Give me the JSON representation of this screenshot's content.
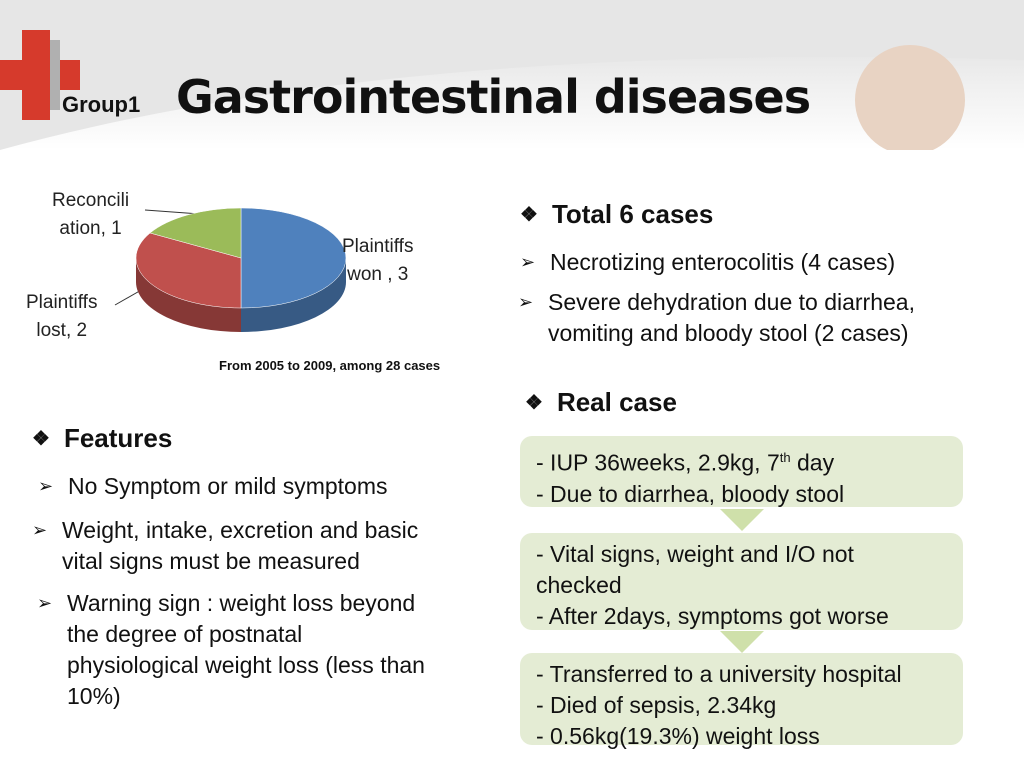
{
  "header": {
    "group": "Group1",
    "title": "Gastrointestinal diseases"
  },
  "chart_data": {
    "type": "pie",
    "values": [
      3,
      2,
      1
    ],
    "value_labels": [
      "Plaintiffs\nwon , 3",
      "Plaintiffs\nlost, 2",
      "Reconcili\nation, 1"
    ],
    "colors": [
      "#4f81bd",
      "#c0504d",
      "#9bbb59"
    ],
    "note": "From 2005 to 2009, among 28 cases"
  },
  "summary": {
    "heading": "Total 6 cases",
    "items": [
      "Necrotizing enterocolitis (4 cases)",
      "Severe dehydration due to diarrhea,\nvomiting and bloody stool (2 cases)"
    ]
  },
  "features": {
    "heading": "Features",
    "items": [
      "No Symptom or mild symptoms",
      "Weight, intake, excretion and basic\nvital signs must be measured",
      "Warning sign : weight loss beyond\nthe degree of postnatal\nphysiological weight loss (less than\n10%)"
    ]
  },
  "real_case": {
    "heading": "Real case",
    "box1": {
      "first": {
        "text": "- IUP 36weeks, 2.9kg, 7",
        "sup": "th",
        "after": " day"
      },
      "second": "- Due to diarrhea, bloody stool"
    },
    "box2": "- Vital signs, weight and I/O not\nchecked\n- After 2days, symptoms got worse",
    "box3": "- Transferred to a university hospital\n- Died of sepsis, 2.34kg\n- 0.56kg(19.3%) weight loss"
  }
}
